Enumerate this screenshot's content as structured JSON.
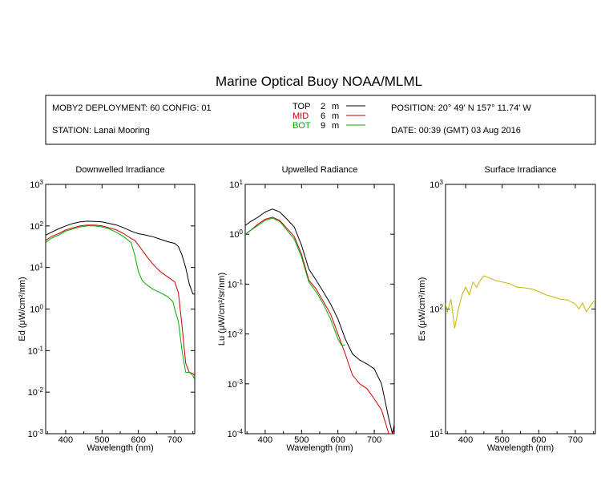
{
  "title": "Marine Optical Buoy NOAA/MLML",
  "info": {
    "deployment": "MOBY2 DEPLOYMENT: 60 CONFIG: 01",
    "station": "STATION: Lanai Mooring",
    "position": "POSITION: 20° 49' N   157° 11.74' W",
    "date": "DATE: 00:39 (GMT) 03 Aug 2016"
  },
  "legend": [
    {
      "label": "TOP",
      "depth": "2",
      "unit": "m",
      "color": "#000000"
    },
    {
      "label": "MID",
      "depth": "6",
      "unit": "m",
      "color": "#cc0000"
    },
    {
      "label": "BOT",
      "depth": "9",
      "unit": "m",
      "color": "#00aa00"
    }
  ],
  "chart_data": [
    {
      "type": "line",
      "title": "Downwelled Irradiance",
      "xlabel": "Wavelength (nm)",
      "ylabel": "Ed  (μW/cm²/nm)",
      "xlim": [
        345,
        755
      ],
      "ylim": [
        0.001,
        1000
      ],
      "yscale": "log",
      "xticks": [
        400,
        500,
        600,
        700
      ],
      "yticks": [
        "10^-3",
        "10^-2",
        "10^-1",
        "10^0",
        "10^1",
        "10^2",
        "10^3"
      ],
      "series": [
        {
          "name": "TOP",
          "color": "#000000",
          "x": [
            345,
            360,
            380,
            400,
            420,
            440,
            460,
            480,
            500,
            520,
            540,
            560,
            580,
            600,
            620,
            640,
            660,
            680,
            700,
            710,
            720,
            730,
            740,
            750,
            755
          ],
          "y": [
            60,
            70,
            85,
            100,
            115,
            125,
            130,
            128,
            125,
            115,
            105,
            90,
            75,
            65,
            60,
            55,
            48,
            42,
            38,
            32,
            20,
            10,
            4,
            2.3,
            2.3
          ]
        },
        {
          "name": "MID",
          "color": "#cc0000",
          "x": [
            345,
            360,
            380,
            400,
            420,
            440,
            460,
            480,
            500,
            520,
            540,
            560,
            580,
            590,
            600,
            620,
            640,
            660,
            680,
            700,
            710,
            720,
            730,
            740,
            750,
            755
          ],
          "y": [
            45,
            55,
            65,
            80,
            90,
            100,
            105,
            105,
            100,
            90,
            80,
            65,
            50,
            45,
            35,
            20,
            12,
            8,
            6,
            4.5,
            2.5,
            0.4,
            0.05,
            0.03,
            0.028,
            0.025
          ]
        },
        {
          "name": "BOT",
          "color": "#00aa00",
          "x": [
            345,
            360,
            380,
            400,
            420,
            440,
            460,
            480,
            500,
            520,
            540,
            560,
            580,
            590,
            600,
            610,
            620,
            640,
            660,
            680,
            695,
            700,
            710,
            720,
            730,
            740,
            750,
            755
          ],
          "y": [
            40,
            50,
            60,
            75,
            85,
            95,
            100,
            100,
            95,
            85,
            70,
            55,
            40,
            20,
            8,
            5,
            4,
            3,
            2.5,
            2,
            1.5,
            1,
            0.5,
            0.1,
            0.03,
            0.03,
            0.025,
            0.02
          ]
        }
      ]
    },
    {
      "type": "line",
      "title": "Upwelled Radiance",
      "xlabel": "Wavelength (nm)",
      "ylabel": "Lu  (μW/cm²/sr/nm)",
      "xlim": [
        345,
        755
      ],
      "ylim": [
        0.0001,
        10
      ],
      "yscale": "log",
      "xticks": [
        400,
        500,
        600,
        700
      ],
      "yticks": [
        "10^-4",
        "10^-3",
        "10^-2",
        "10^-1",
        "10^0",
        "10^1"
      ],
      "series": [
        {
          "name": "TOP",
          "color": "#000000",
          "x": [
            345,
            360,
            380,
            400,
            420,
            440,
            460,
            480,
            500,
            520,
            540,
            560,
            580,
            600,
            620,
            640,
            660,
            680,
            700,
            720,
            740,
            750,
            755
          ],
          "y": [
            1.5,
            1.8,
            2.2,
            2.8,
            3.2,
            2.8,
            2.0,
            1.4,
            0.6,
            0.2,
            0.12,
            0.07,
            0.04,
            0.02,
            0.008,
            0.004,
            0.003,
            0.0025,
            0.002,
            0.001,
            0.0002,
            0.0001,
            0.00015
          ]
        },
        {
          "name": "MID",
          "color": "#cc0000",
          "x": [
            345,
            360,
            380,
            400,
            420,
            440,
            460,
            480,
            500,
            520,
            540,
            560,
            580,
            600,
            620,
            640,
            660,
            680,
            700,
            720,
            740,
            750,
            755
          ],
          "y": [
            1.0,
            1.2,
            1.6,
            2.0,
            2.2,
            1.9,
            1.3,
            0.9,
            0.4,
            0.12,
            0.08,
            0.045,
            0.025,
            0.01,
            0.004,
            0.0015,
            0.001,
            0.0008,
            0.0005,
            0.0003,
            0.0001,
            0.0001,
            0.00012
          ]
        },
        {
          "name": "BOT",
          "color": "#00aa00",
          "x": [
            345,
            360,
            380,
            400,
            420,
            440,
            460,
            480,
            500,
            520,
            540,
            560,
            580,
            600,
            610,
            620
          ],
          "y": [
            1.0,
            1.2,
            1.5,
            1.9,
            2.1,
            1.8,
            1.2,
            0.8,
            0.35,
            0.11,
            0.07,
            0.04,
            0.02,
            0.008,
            0.006,
            0.006
          ]
        }
      ]
    },
    {
      "type": "line",
      "title": "Surface Irradiance",
      "xlabel": "Wavelength (nm)",
      "ylabel": "Es  (μW/cm²/nm)",
      "xlim": [
        345,
        755
      ],
      "ylim": [
        10,
        1000
      ],
      "yscale": "log",
      "xticks": [
        400,
        500,
        600,
        700
      ],
      "yticks": [
        "10^1",
        "10^2",
        "10^3"
      ],
      "series": [
        {
          "name": "Es",
          "color": "#c8b400",
          "x": [
            345,
            350,
            360,
            370,
            380,
            390,
            400,
            410,
            420,
            430,
            440,
            450,
            460,
            480,
            500,
            520,
            540,
            560,
            580,
            600,
            620,
            640,
            660,
            680,
            700,
            710,
            720,
            730,
            740,
            750,
            755
          ],
          "y": [
            110,
            95,
            120,
            70,
            100,
            130,
            150,
            130,
            165,
            150,
            170,
            185,
            180,
            170,
            165,
            160,
            150,
            148,
            145,
            138,
            130,
            125,
            120,
            118,
            110,
            100,
            112,
            95,
            105,
            115,
            118
          ]
        }
      ]
    }
  ]
}
